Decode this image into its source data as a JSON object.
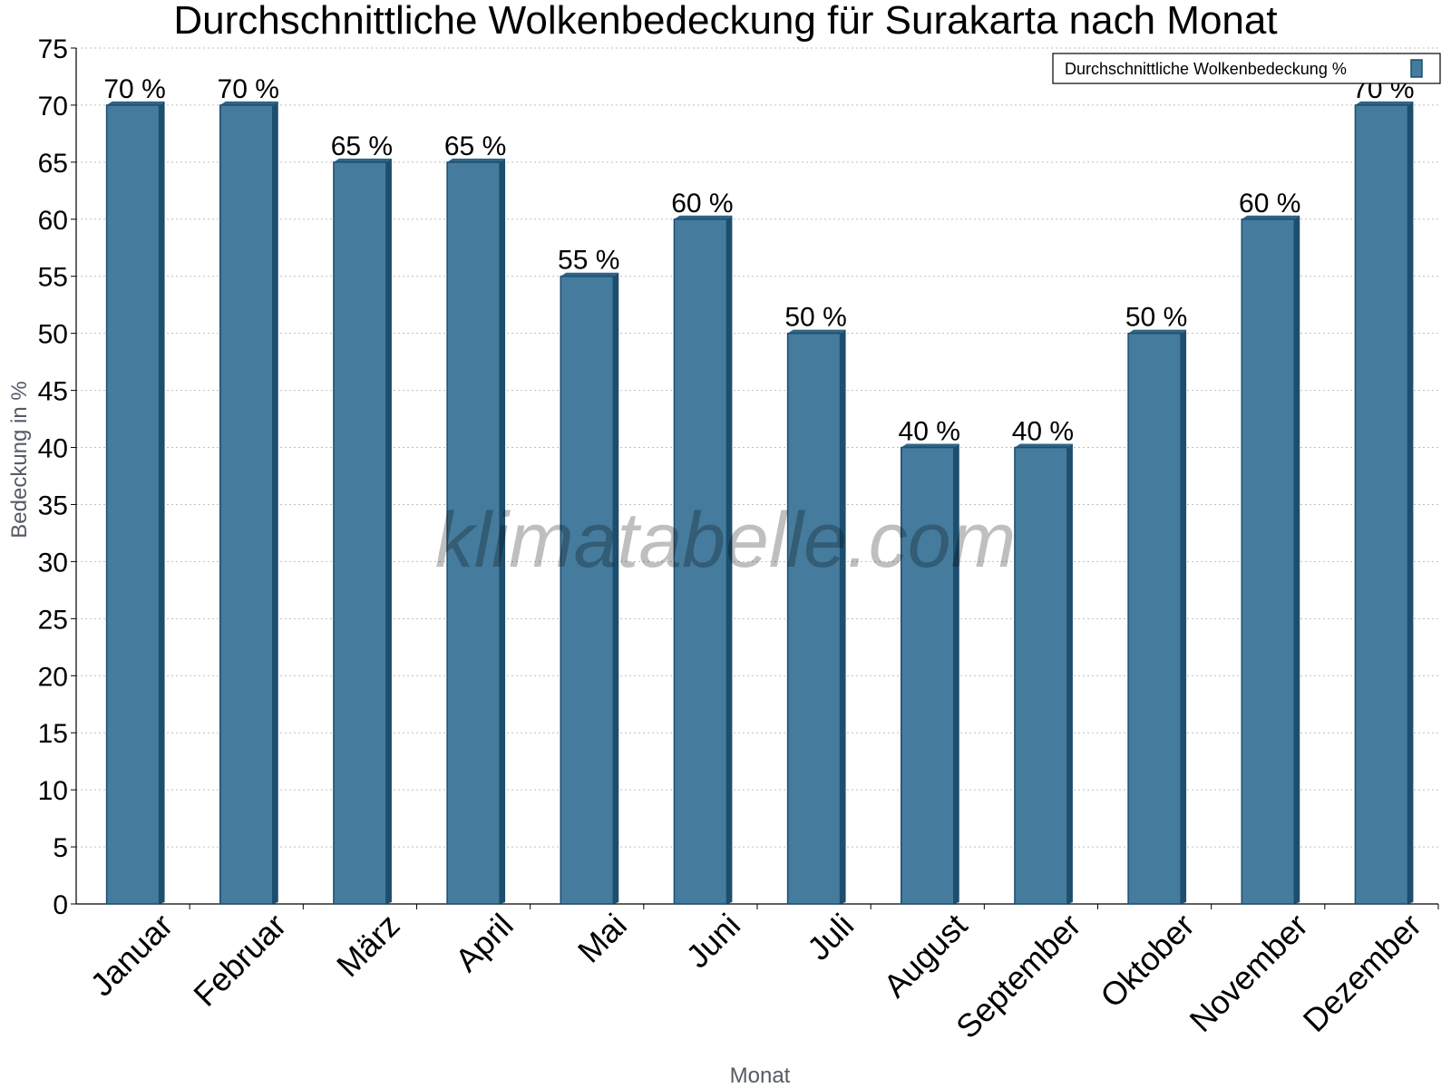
{
  "chart_data": {
    "type": "bar",
    "title": "Durchschnittliche Wolkenbedeckung für Surakarta nach Monat",
    "xlabel": "Monat",
    "ylabel": "Bedeckung in %",
    "ylim": [
      0,
      75
    ],
    "ytick_step": 5,
    "grid": true,
    "legend_position": "top-right",
    "categories": [
      "Januar",
      "Februar",
      "März",
      "April",
      "Mai",
      "Juni",
      "Juli",
      "August",
      "September",
      "Oktober",
      "November",
      "Dezember"
    ],
    "series": [
      {
        "name": "Durchschnittliche Wolkenbedeckung %",
        "values": [
          70,
          70,
          65,
          65,
          55,
          60,
          50,
          40,
          40,
          50,
          60,
          70
        ],
        "labels": [
          "70 %",
          "70 %",
          "65 %",
          "65 %",
          "55 %",
          "60 %",
          "50 %",
          "40 %",
          "40 %",
          "50 %",
          "60 %",
          "70 %"
        ]
      }
    ],
    "colors": {
      "bar": "#457b9d",
      "bar_dark": "#1d4e6e",
      "bar_top": "#2f6586"
    }
  },
  "watermark": "klimatabelle.com"
}
